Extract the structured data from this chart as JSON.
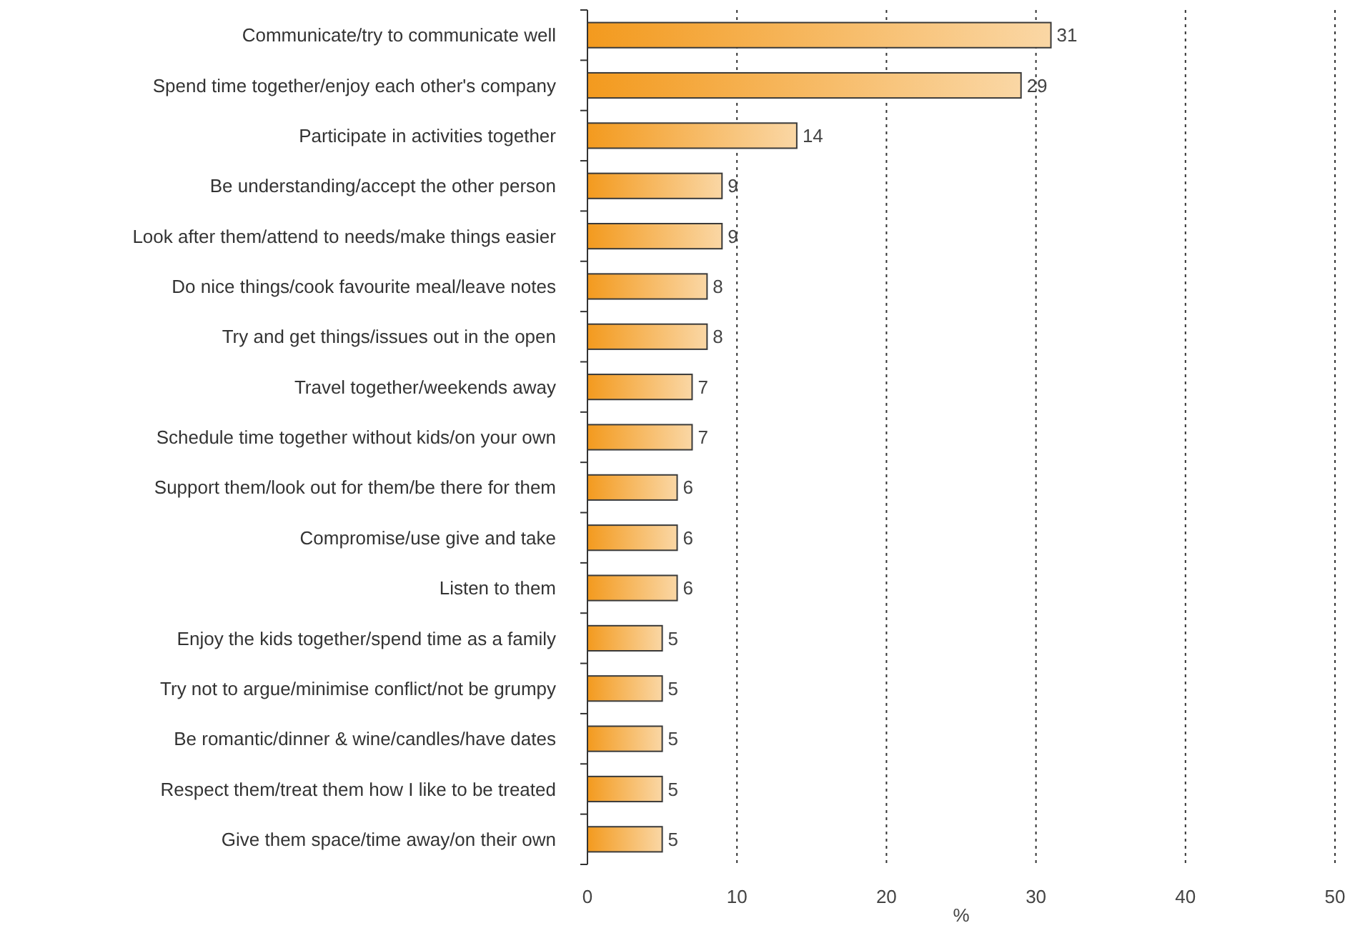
{
  "chart_data": {
    "type": "bar",
    "orientation": "horizontal",
    "xlabel": "%",
    "categories": [
      "Communicate/try to communicate well",
      "Spend time together/enjoy each other's company",
      "Participate in activities together",
      "Be understanding/accept the other person",
      "Look after them/attend to needs/make things easier",
      "Do nice things/cook favourite meal/leave notes",
      "Try and get things/issues out in the open",
      "Travel together/weekends away",
      "Schedule time together without kids/on your own",
      "Support them/look out for them/be there for them",
      "Compromise/use give and take",
      "Listen to them",
      "Enjoy the kids together/spend time as a family",
      "Try not to argue/minimise conflict/not be grumpy",
      "Be romantic/dinner & wine/candles/have dates",
      "Respect them/treat them how I like to be treated",
      "Give them space/time away/on their own"
    ],
    "values": [
      31,
      29,
      14,
      9,
      9,
      8,
      8,
      7,
      7,
      6,
      6,
      6,
      5,
      5,
      5,
      5,
      5
    ],
    "color": "#f39a1e",
    "xlim": [
      0,
      50
    ],
    "xticks": [
      0,
      10,
      20,
      30,
      40,
      50
    ],
    "grid": "x",
    "data_labels": true
  }
}
